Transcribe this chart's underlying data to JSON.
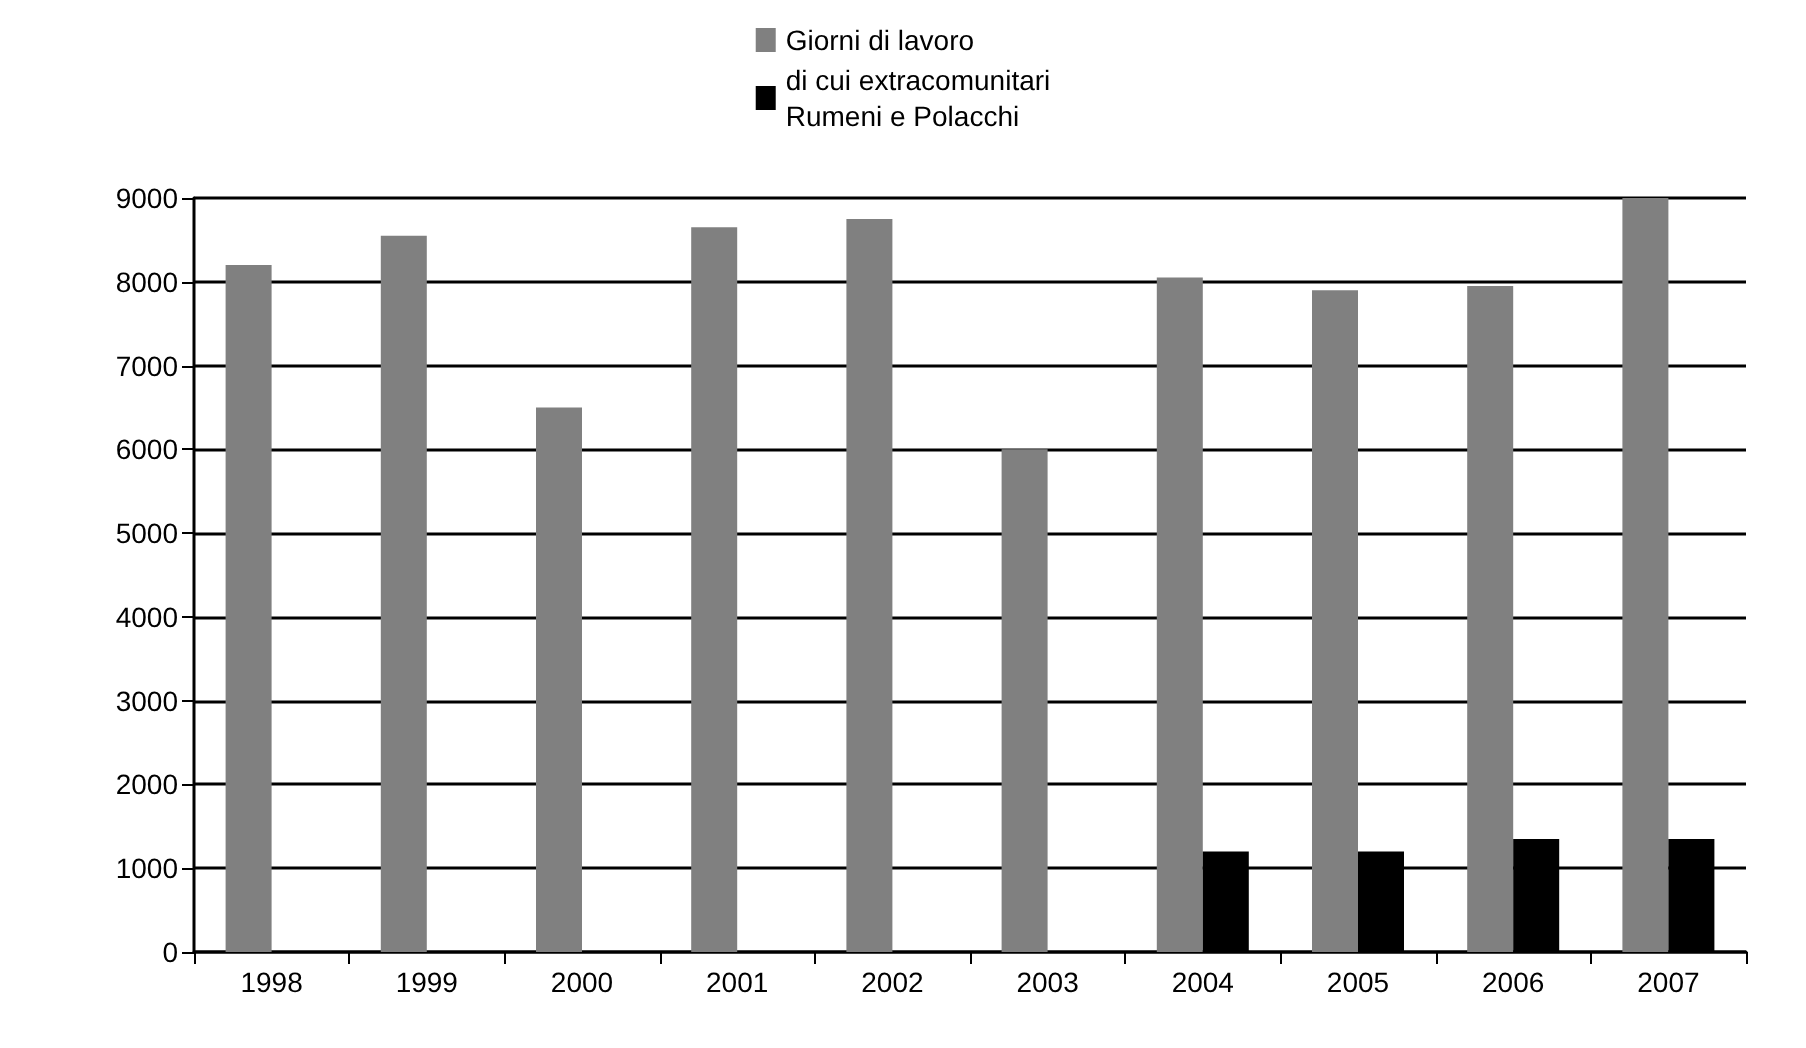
{
  "chart_data": {
    "type": "bar",
    "categories": [
      "1998",
      "1999",
      "2000",
      "2001",
      "2002",
      "2003",
      "2004",
      "2005",
      "2006",
      "2007"
    ],
    "series": [
      {
        "name": "Giorni di lavoro",
        "color": "#808080",
        "values": [
          8200,
          8550,
          6500,
          8650,
          8750,
          6000,
          8050,
          7900,
          7950,
          9000
        ]
      },
      {
        "name": "di cui extracomunitari\nRumeni e Polacchi",
        "color": "#000000",
        "values": [
          null,
          null,
          null,
          null,
          null,
          null,
          1200,
          1200,
          1350,
          1350
        ]
      }
    ],
    "ylim": [
      0,
      9000
    ],
    "yticks": [
      0,
      1000,
      2000,
      3000,
      4000,
      5000,
      6000,
      7000,
      8000,
      9000
    ],
    "grid": "y",
    "legend": "top"
  }
}
